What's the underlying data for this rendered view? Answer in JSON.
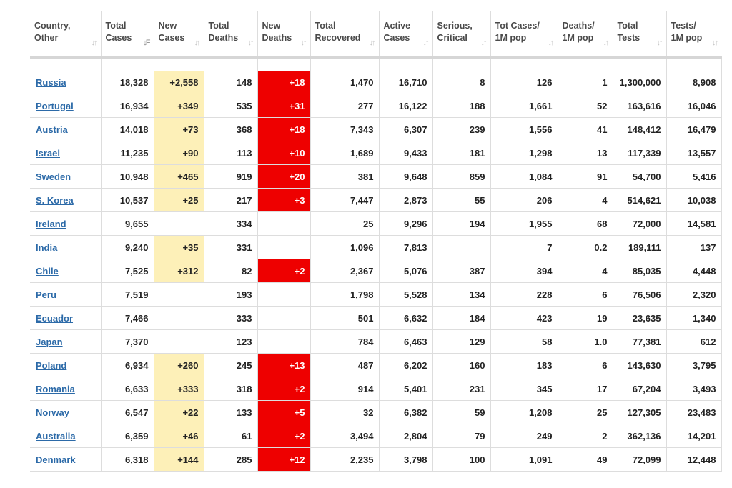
{
  "columns": [
    {
      "l1": "Country,",
      "l2": "Other",
      "sort": "↓↑"
    },
    {
      "l1": "Total",
      "l2": "Cases",
      "sort": "↓F"
    },
    {
      "l1": "New",
      "l2": "Cases",
      "sort": "↓↑"
    },
    {
      "l1": "Total",
      "l2": "Deaths",
      "sort": "↓↑"
    },
    {
      "l1": "New",
      "l2": "Deaths",
      "sort": "↓↑"
    },
    {
      "l1": "Total",
      "l2": "Recovered",
      "sort": "↓↑"
    },
    {
      "l1": "Active",
      "l2": "Cases",
      "sort": "↓↑"
    },
    {
      "l1": "Serious,",
      "l2": "Critical",
      "sort": "↓↑"
    },
    {
      "l1": "Tot Cases/",
      "l2": "1M pop",
      "sort": "↓↑"
    },
    {
      "l1": "Deaths/",
      "l2": "1M pop",
      "sort": "↓↑"
    },
    {
      "l1": "Total",
      "l2": "Tests",
      "sort": "↓↑"
    },
    {
      "l1": "Tests/",
      "l2": "1M pop",
      "sort": "↓↑"
    }
  ],
  "rows": [
    [
      "Russia",
      "18,328",
      "+2,558",
      "148",
      "+18",
      "1,470",
      "16,710",
      "8",
      "126",
      "1",
      "1,300,000",
      "8,908"
    ],
    [
      "Portugal",
      "16,934",
      "+349",
      "535",
      "+31",
      "277",
      "16,122",
      "188",
      "1,661",
      "52",
      "163,616",
      "16,046"
    ],
    [
      "Austria",
      "14,018",
      "+73",
      "368",
      "+18",
      "7,343",
      "6,307",
      "239",
      "1,556",
      "41",
      "148,412",
      "16,479"
    ],
    [
      "Israel",
      "11,235",
      "+90",
      "113",
      "+10",
      "1,689",
      "9,433",
      "181",
      "1,298",
      "13",
      "117,339",
      "13,557"
    ],
    [
      "Sweden",
      "10,948",
      "+465",
      "919",
      "+20",
      "381",
      "9,648",
      "859",
      "1,084",
      "91",
      "54,700",
      "5,416"
    ],
    [
      "S. Korea",
      "10,537",
      "+25",
      "217",
      "+3",
      "7,447",
      "2,873",
      "55",
      "206",
      "4",
      "514,621",
      "10,038"
    ],
    [
      "Ireland",
      "9,655",
      "",
      "334",
      "",
      "25",
      "9,296",
      "194",
      "1,955",
      "68",
      "72,000",
      "14,581"
    ],
    [
      "India",
      "9,240",
      "+35",
      "331",
      "",
      "1,096",
      "7,813",
      "",
      "7",
      "0.2",
      "189,111",
      "137"
    ],
    [
      "Chile",
      "7,525",
      "+312",
      "82",
      "+2",
      "2,367",
      "5,076",
      "387",
      "394",
      "4",
      "85,035",
      "4,448"
    ],
    [
      "Peru",
      "7,519",
      "",
      "193",
      "",
      "1,798",
      "5,528",
      "134",
      "228",
      "6",
      "76,506",
      "2,320"
    ],
    [
      "Ecuador",
      "7,466",
      "",
      "333",
      "",
      "501",
      "6,632",
      "184",
      "423",
      "19",
      "23,635",
      "1,340"
    ],
    [
      "Japan",
      "7,370",
      "",
      "123",
      "",
      "784",
      "6,463",
      "129",
      "58",
      "1.0",
      "77,381",
      "612"
    ],
    [
      "Poland",
      "6,934",
      "+260",
      "245",
      "+13",
      "487",
      "6,202",
      "160",
      "183",
      "6",
      "143,630",
      "3,795"
    ],
    [
      "Romania",
      "6,633",
      "+333",
      "318",
      "+2",
      "914",
      "5,401",
      "231",
      "345",
      "17",
      "67,204",
      "3,493"
    ],
    [
      "Norway",
      "6,547",
      "+22",
      "133",
      "+5",
      "32",
      "6,382",
      "59",
      "1,208",
      "25",
      "127,305",
      "23,483"
    ],
    [
      "Australia",
      "6,359",
      "+46",
      "61",
      "+2",
      "3,494",
      "2,804",
      "79",
      "249",
      "2",
      "362,136",
      "14,201"
    ],
    [
      "Denmark",
      "6,318",
      "+144",
      "285",
      "+12",
      "2,235",
      "3,798",
      "100",
      "1,091",
      "49",
      "72,099",
      "12,448"
    ]
  ],
  "colors": {
    "new_cases_highlight": "#fdf0b8",
    "new_deaths_highlight": "#ee0000",
    "country_link": "#2c6aa8"
  }
}
